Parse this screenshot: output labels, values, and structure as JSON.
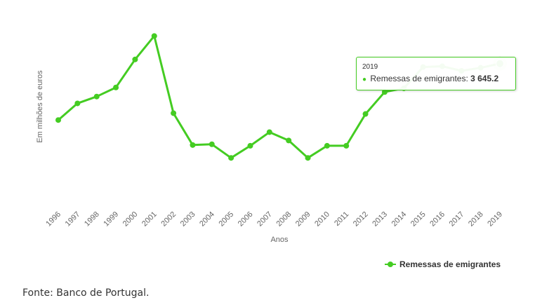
{
  "chart_data": {
    "type": "line",
    "title": "",
    "xlabel": "Anos",
    "ylabel": "Em milhões de euros",
    "categories": [
      "1996",
      "1997",
      "1998",
      "1999",
      "2000",
      "2001",
      "2002",
      "2003",
      "2004",
      "2005",
      "2006",
      "2007",
      "2008",
      "2009",
      "2010",
      "2011",
      "2012",
      "2013",
      "2014",
      "2015",
      "2016",
      "2017",
      "2018",
      "2019"
    ],
    "series": [
      {
        "name": "Remessas de emigrantes",
        "color": "#44cc22",
        "values": [
          2900,
          3120,
          3210,
          3330,
          3700,
          4010,
          2990,
          2570,
          2580,
          2400,
          2560,
          2740,
          2630,
          2400,
          2560,
          2560,
          2980,
          3270,
          3320,
          3600,
          3610,
          3550,
          3590,
          3645.2
        ]
      }
    ],
    "ylim": [
      1800,
      4300
    ],
    "grid": false,
    "legend": "bottom-right",
    "tooltip": {
      "year": "2019",
      "series_label": "Remessas de emigrantes: ",
      "value_label": "3 645.2",
      "dot": "●"
    }
  },
  "source_text": "Fonte: Banco de Portugal."
}
